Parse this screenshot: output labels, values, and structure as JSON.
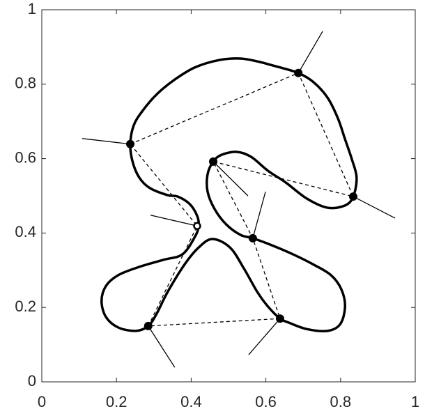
{
  "chart_data": {
    "type": "line",
    "xlim": [
      0,
      1
    ],
    "ylim": [
      0,
      1
    ],
    "xticks": [
      0,
      0.2,
      0.4,
      0.6,
      0.8,
      1
    ],
    "yticks": [
      0,
      0.2,
      0.4,
      0.6,
      0.8,
      1
    ],
    "grid": false,
    "box": true,
    "series": [
      {
        "color": "#000000",
        "line": "solid",
        "width": 3.5,
        "smooth": true,
        "x": [
          0.237,
          0.246,
          0.271,
          0.308,
          0.354,
          0.41,
          0.476,
          0.532,
          0.578,
          0.634,
          0.687,
          0.728,
          0.765,
          0.793,
          0.812,
          0.83,
          0.843,
          0.834,
          0.812,
          0.765,
          0.709,
          0.653,
          0.606,
          0.56,
          0.522,
          0.481,
          0.459,
          0.444,
          0.444,
          0.463,
          0.494,
          0.532,
          0.565,
          0.616,
          0.672,
          0.728,
          0.774,
          0.802,
          0.812,
          0.799,
          0.765,
          0.709,
          0.662,
          0.638,
          0.606,
          0.578,
          0.541,
          0.504,
          0.457,
          0.42,
          0.382,
          0.336,
          0.308,
          0.285,
          0.252,
          0.205,
          0.172,
          0.16,
          0.172,
          0.205,
          0.261,
          0.326,
          0.377,
          0.41,
          0.42,
          0.416,
          0.396,
          0.364,
          0.336,
          0.289,
          0.261,
          0.243,
          0.237
        ],
        "y": [
          0.639,
          0.689,
          0.73,
          0.773,
          0.811,
          0.845,
          0.865,
          0.869,
          0.861,
          0.846,
          0.83,
          0.805,
          0.764,
          0.708,
          0.652,
          0.599,
          0.549,
          0.498,
          0.474,
          0.468,
          0.493,
          0.536,
          0.567,
          0.605,
          0.618,
          0.61,
          0.592,
          0.558,
          0.511,
          0.464,
          0.423,
          0.395,
          0.386,
          0.367,
          0.343,
          0.315,
          0.287,
          0.249,
          0.202,
          0.155,
          0.137,
          0.142,
          0.159,
          0.17,
          0.202,
          0.24,
          0.305,
          0.361,
          0.384,
          0.361,
          0.315,
          0.24,
          0.184,
          0.15,
          0.137,
          0.146,
          0.174,
          0.217,
          0.258,
          0.287,
          0.309,
          0.328,
          0.343,
          0.39,
          0.419,
          0.446,
          0.478,
          0.498,
          0.502,
          0.521,
          0.549,
          0.592,
          0.639
        ]
      },
      {
        "color": "#000000",
        "line": "dashed",
        "width": 1.3,
        "smooth": false,
        "x": [
          0.237,
          0.687,
          0.834,
          0.459,
          0.565,
          0.638,
          0.285,
          0.416,
          0.237
        ],
        "y": [
          0.639,
          0.83,
          0.498,
          0.592,
          0.386,
          0.17,
          0.15,
          0.419,
          0.639
        ]
      },
      {
        "color": "#000000",
        "line": "solid",
        "width": 1.3,
        "smooth": false,
        "x": [
          0.687,
          0.752,
          null,
          0.834,
          0.946,
          null,
          0.459,
          0.552,
          null,
          0.565,
          0.599,
          null,
          0.638,
          0.554,
          null,
          0.285,
          0.356,
          null,
          0.416,
          0.291,
          null,
          0.237,
          0.108
        ],
        "y": [
          0.83,
          0.942,
          null,
          0.498,
          0.44,
          null,
          0.592,
          0.5,
          null,
          0.386,
          0.511,
          null,
          0.17,
          0.073,
          null,
          0.15,
          0.039,
          null,
          0.419,
          0.448,
          null,
          0.639,
          0.654
        ]
      },
      {
        "color": "#000000",
        "line": "none",
        "marker": "filled",
        "x": [
          0.687,
          0.834,
          0.459,
          0.565,
          0.638,
          0.285,
          0.237
        ],
        "y": [
          0.83,
          0.498,
          0.592,
          0.386,
          0.17,
          0.15,
          0.639
        ]
      },
      {
        "color": "#000000",
        "line": "none",
        "marker": "open",
        "x": [
          0.416
        ],
        "y": [
          0.419
        ]
      }
    ]
  }
}
